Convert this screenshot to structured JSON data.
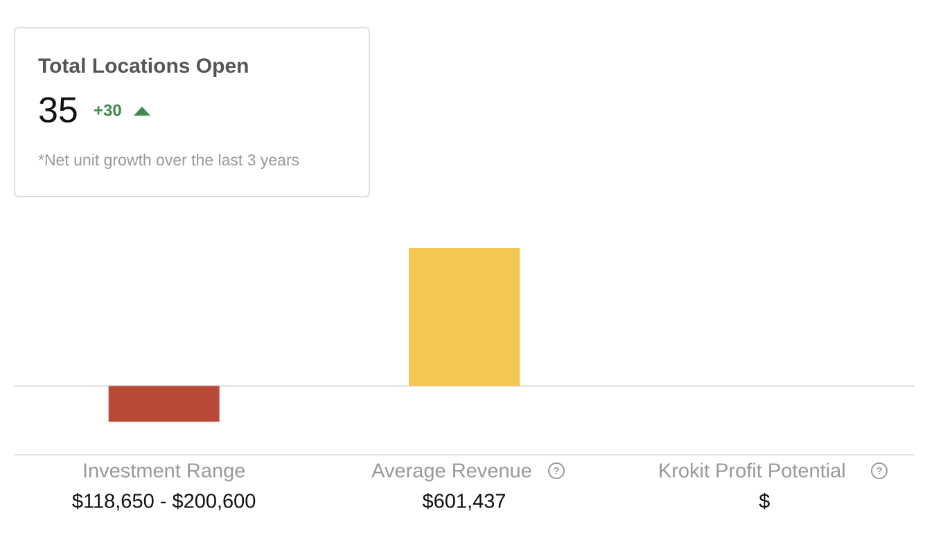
{
  "card": {
    "title": "Total Locations Open",
    "value": "35",
    "change": "+30",
    "note": "*Net unit growth over the last 3 years"
  },
  "chart_data": {
    "type": "bar",
    "categories": [
      "Investment Range",
      "Average Revenue",
      "Krokit Profit Potential"
    ],
    "values": [
      -156000,
      601437,
      null
    ],
    "colors": [
      "#b94a38",
      "#f4c752",
      "#4a7fb9"
    ],
    "ylim": [
      -300000,
      601437
    ]
  },
  "summary": [
    "$118,650 - $200,600",
    "$601,437",
    "$"
  ]
}
